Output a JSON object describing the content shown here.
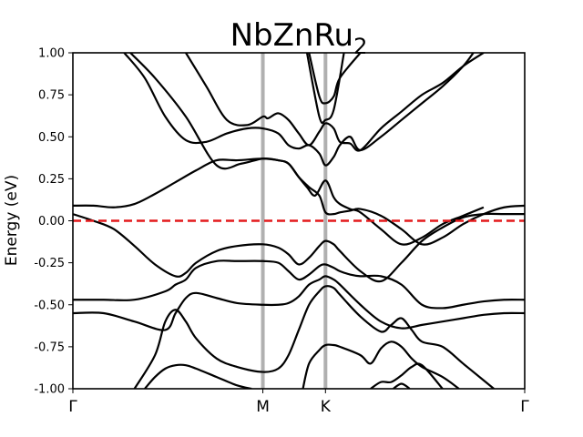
{
  "chart_data": {
    "type": "line",
    "title_main": "NbZnRu",
    "title_subscript": "2",
    "xlabel": "",
    "ylabel": "Energy (eV)",
    "ylim": [
      -1.0,
      1.0
    ],
    "xlim": [
      0,
      2.2
    ],
    "yticks": [
      "-1.00",
      "-0.75",
      "-0.50",
      "-0.25",
      "0.00",
      "0.25",
      "0.50",
      "0.75",
      "1.00"
    ],
    "ytick_values": [
      -1.0,
      -0.75,
      -0.5,
      -0.25,
      0.0,
      0.25,
      0.5,
      0.75,
      1.0
    ],
    "high_symmetry_points": [
      {
        "label": "Γ",
        "x": 0.0
      },
      {
        "label": "M",
        "x": 0.925
      },
      {
        "label": "K",
        "x": 1.23
      },
      {
        "label": "Γ",
        "x": 2.2
      }
    ],
    "fermi_level": 0.0,
    "colors": {
      "bands": "#000000",
      "fermi": "#e31a1c",
      "vlines": "#b0b0b0"
    },
    "grid": false,
    "series": [
      {
        "x": [
          0.28,
          0.4,
          0.55,
          0.7,
          0.82,
          0.925,
          1.0,
          1.05,
          1.1,
          1.14,
          1.18,
          1.23,
          1.27,
          1.3,
          1.35,
          1.4,
          1.5,
          1.6,
          1.7,
          1.8,
          1.9,
          2.0
        ],
        "values": [
          1.0,
          0.85,
          0.62,
          0.33,
          0.34,
          0.37,
          0.36,
          0.34,
          0.26,
          0.2,
          0.15,
          0.24,
          0.14,
          0.1,
          0.07,
          0.05,
          -0.05,
          -0.14,
          -0.1,
          -0.02,
          0.03,
          0.08
        ]
      },
      {
        "x": [
          0.0,
          0.1,
          0.2,
          0.3,
          0.4,
          0.5,
          0.6,
          0.7,
          0.8,
          0.925,
          1.0,
          1.05,
          1.1,
          1.15,
          1.2,
          1.23,
          1.27,
          1.3,
          1.35,
          1.4,
          1.5,
          1.6,
          1.7,
          1.8,
          1.9,
          2.0,
          2.1,
          2.2
        ],
        "values": [
          0.09,
          0.09,
          0.08,
          0.1,
          0.16,
          0.23,
          0.3,
          0.36,
          0.36,
          0.37,
          0.36,
          0.34,
          0.26,
          0.2,
          0.15,
          0.05,
          0.04,
          0.05,
          0.06,
          0.07,
          0.03,
          -0.05,
          -0.14,
          -0.1,
          -0.02,
          0.04,
          0.08,
          0.09
        ]
      },
      {
        "x": [
          0.0,
          0.1,
          0.2,
          0.3,
          0.4,
          0.5,
          0.55,
          0.6,
          0.7,
          0.8,
          0.925,
          1.0,
          1.05,
          1.1,
          1.15,
          1.2,
          1.23,
          1.27,
          1.3,
          1.4,
          1.5,
          1.6,
          1.7,
          1.8,
          1.9,
          2.0,
          2.1,
          2.2
        ],
        "values": [
          0.04,
          0.0,
          -0.05,
          -0.15,
          -0.26,
          -0.33,
          -0.31,
          -0.25,
          -0.18,
          -0.15,
          -0.14,
          -0.16,
          -0.2,
          -0.26,
          -0.22,
          -0.15,
          -0.12,
          -0.14,
          -0.18,
          -0.3,
          -0.36,
          -0.25,
          -0.12,
          -0.04,
          0.02,
          0.04,
          0.04,
          0.04
        ]
      },
      {
        "x": [
          0.0,
          0.15,
          0.3,
          0.45,
          0.5,
          0.55,
          0.6,
          0.7,
          0.8,
          0.925,
          1.0,
          1.05,
          1.1,
          1.15,
          1.2,
          1.23,
          1.27,
          1.3,
          1.35,
          1.4,
          1.5,
          1.6,
          1.7,
          1.8,
          1.9,
          2.0,
          2.1,
          2.2
        ],
        "values": [
          -0.47,
          -0.47,
          -0.47,
          -0.42,
          -0.38,
          -0.35,
          -0.28,
          -0.24,
          -0.24,
          -0.24,
          -0.25,
          -0.3,
          -0.35,
          -0.32,
          -0.27,
          -0.26,
          -0.28,
          -0.3,
          -0.32,
          -0.33,
          -0.33,
          -0.38,
          -0.5,
          -0.52,
          -0.5,
          -0.48,
          -0.47,
          -0.47
        ]
      },
      {
        "x": [
          0.0,
          0.15,
          0.3,
          0.45,
          0.5,
          0.55,
          0.6,
          0.7,
          0.8,
          0.925,
          1.0,
          1.05,
          1.1,
          1.15,
          1.2,
          1.23,
          1.27,
          1.3,
          1.4,
          1.5,
          1.6,
          1.7,
          1.8,
          1.9,
          2.0,
          2.1,
          2.2
        ],
        "values": [
          -0.55,
          -0.55,
          -0.6,
          -0.65,
          -0.55,
          -0.46,
          -0.43,
          -0.46,
          -0.49,
          -0.5,
          -0.5,
          -0.49,
          -0.45,
          -0.38,
          -0.35,
          -0.33,
          -0.35,
          -0.38,
          -0.5,
          -0.6,
          -0.64,
          -0.62,
          -0.6,
          -0.58,
          -0.56,
          -0.55,
          -0.55
        ]
      },
      {
        "x": [
          0.3,
          0.4,
          0.45,
          0.5,
          0.55,
          0.6,
          0.7,
          0.8,
          0.925,
          1.0,
          1.05,
          1.1,
          1.15,
          1.2,
          1.23,
          1.27,
          1.3,
          1.4,
          1.5,
          1.55,
          1.6,
          1.65,
          1.7,
          1.8,
          1.9,
          2.0,
          2.05
        ],
        "values": [
          -1.0,
          -0.8,
          -0.6,
          -0.53,
          -0.6,
          -0.7,
          -0.82,
          -0.87,
          -0.9,
          -0.88,
          -0.8,
          -0.65,
          -0.5,
          -0.42,
          -0.39,
          -0.4,
          -0.44,
          -0.57,
          -0.66,
          -0.62,
          -0.58,
          -0.65,
          -0.72,
          -0.75,
          -0.85,
          -0.95,
          -1.0
        ]
      },
      {
        "x": [
          0.35,
          0.4,
          0.45,
          0.5,
          0.55,
          0.6,
          0.7,
          0.8,
          0.87
        ],
        "values": [
          -1.0,
          -0.93,
          -0.88,
          -0.86,
          -0.86,
          -0.88,
          -0.93,
          -0.98,
          -1.0
        ]
      },
      {
        "x": [
          1.12,
          1.15,
          1.2,
          1.23,
          1.27,
          1.3,
          1.4,
          1.45,
          1.5,
          1.55,
          1.6,
          1.65,
          1.7,
          1.8,
          1.88
        ],
        "values": [
          -1.0,
          -0.85,
          -0.77,
          -0.74,
          -0.74,
          -0.75,
          -0.8,
          -0.85,
          -0.76,
          -0.72,
          -0.75,
          -0.82,
          -0.87,
          -0.93,
          -1.0
        ]
      },
      {
        "x": [
          1.45,
          1.5,
          1.55,
          1.6,
          1.65,
          1.7,
          1.8
        ],
        "values": [
          -1.0,
          -0.96,
          -0.96,
          -0.92,
          -0.87,
          -0.86,
          -1.0
        ]
      },
      {
        "x": [
          1.56,
          1.6,
          1.64
        ],
        "values": [
          -1.0,
          -0.97,
          -1.0
        ]
      },
      {
        "x": [
          0.25,
          0.35,
          0.45,
          0.55,
          0.65,
          0.75,
          0.85,
          0.925,
          1.0,
          1.05,
          1.1,
          1.15,
          1.2,
          1.23,
          1.27,
          1.3,
          1.35,
          1.4,
          1.5,
          1.6,
          1.7,
          1.8,
          1.9,
          1.95
        ],
        "values": [
          1.0,
          0.85,
          0.62,
          0.48,
          0.47,
          0.52,
          0.55,
          0.55,
          0.52,
          0.45,
          0.43,
          0.45,
          0.4,
          0.33,
          0.38,
          0.45,
          0.5,
          0.42,
          0.5,
          0.6,
          0.7,
          0.8,
          0.92,
          1.0
        ]
      },
      {
        "x": [
          0.55,
          0.65,
          0.75,
          0.85,
          0.925,
          0.95,
          1.0,
          1.05,
          1.1,
          1.15,
          1.2,
          1.23,
          1.27,
          1.3,
          1.35,
          1.4,
          1.5,
          1.6,
          1.7,
          1.8,
          1.9,
          2.0
        ],
        "values": [
          1.0,
          0.8,
          0.6,
          0.57,
          0.62,
          0.61,
          0.64,
          0.6,
          0.52,
          0.45,
          0.53,
          0.58,
          0.55,
          0.47,
          0.46,
          0.42,
          0.55,
          0.65,
          0.75,
          0.82,
          0.92,
          1.0
        ]
      },
      {
        "x": [
          1.15,
          1.2,
          1.23,
          1.27,
          1.3,
          1.4
        ],
        "values": [
          1.0,
          0.74,
          0.7,
          0.74,
          0.85,
          1.0
        ]
      },
      {
        "x": [
          1.14,
          1.2,
          1.23,
          1.27,
          1.32
        ],
        "values": [
          1.0,
          0.62,
          0.6,
          0.66,
          1.0
        ]
      }
    ]
  }
}
